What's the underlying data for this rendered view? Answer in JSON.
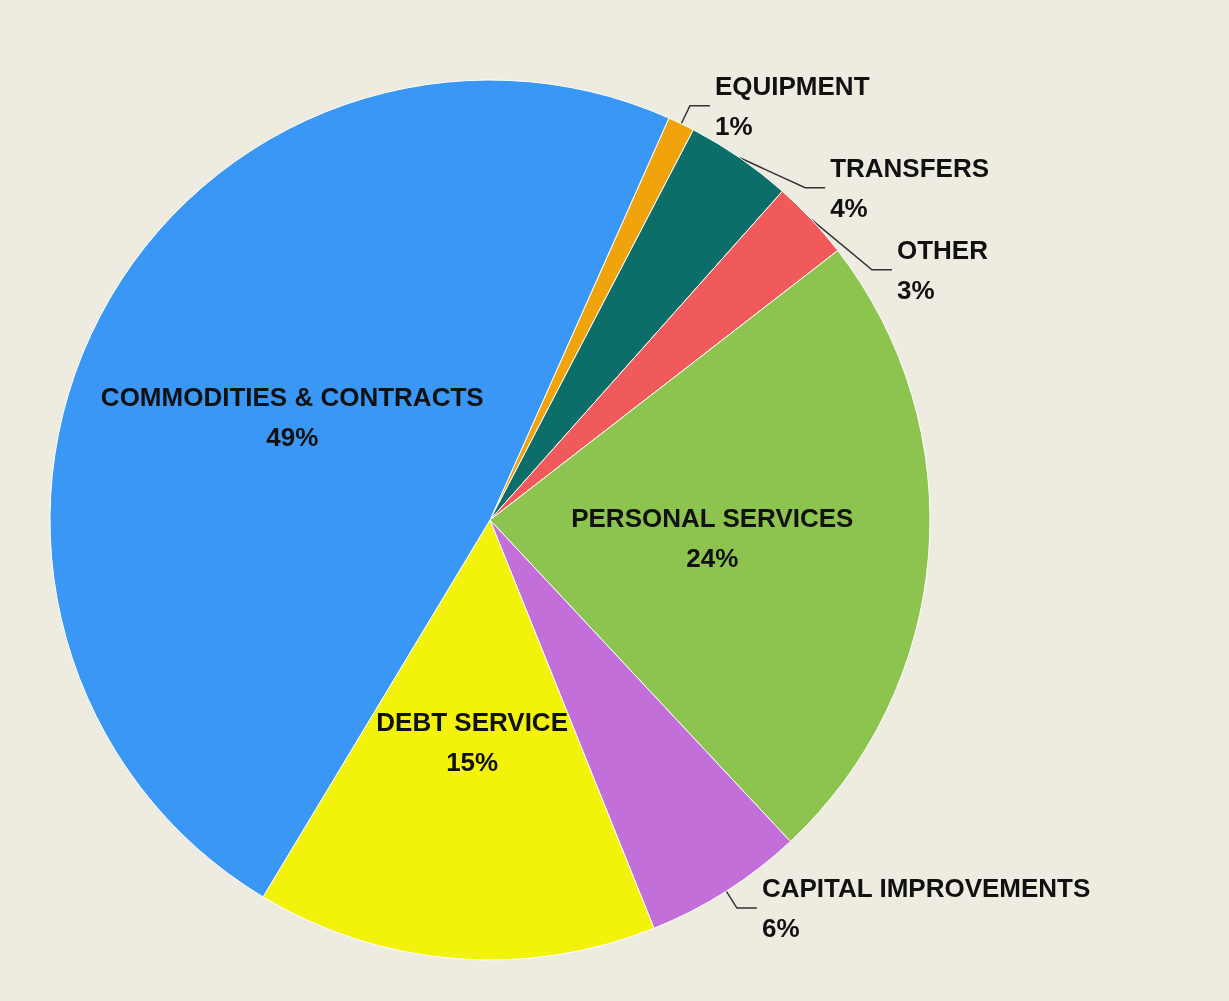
{
  "chart_data": {
    "type": "pie",
    "categories": [
      "EQUIPMENT",
      "TRANSFERS",
      "OTHER",
      "PERSONAL SERVICES",
      "CAPITAL IMPROVEMENTS",
      "DEBT SERVICE",
      "COMMODITIES & CONTRACTS"
    ],
    "values": [
      1,
      4,
      3,
      24,
      6,
      15,
      49
    ],
    "value_labels": [
      "1%",
      "4%",
      "3%",
      "24%",
      "6%",
      "15%",
      "49%"
    ],
    "colors": [
      "#f0a30a",
      "#0b6e68",
      "#f05a5a",
      "#8dc44f",
      "#c36fd9",
      "#f2f20a",
      "#3a97f5"
    ],
    "legend": false
  }
}
